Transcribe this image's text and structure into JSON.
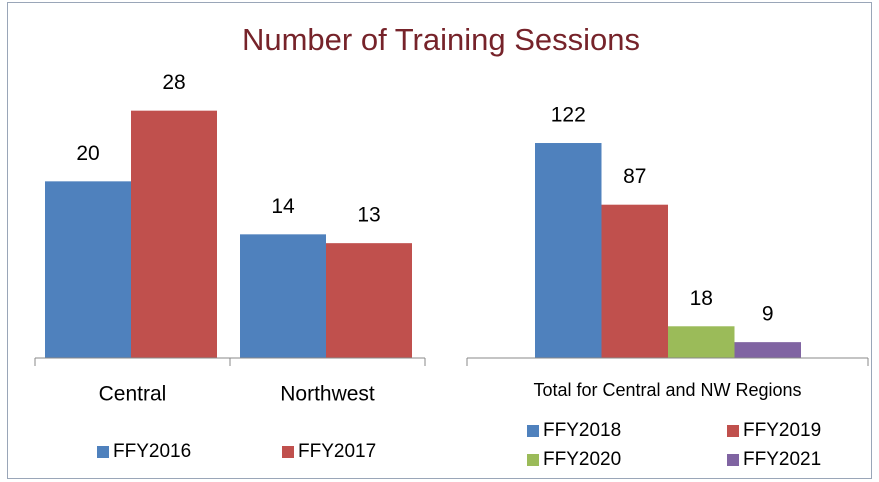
{
  "chart_data": [
    {
      "type": "bar",
      "title": "Number of Training Sessions",
      "categories": [
        "Central",
        "Northwest"
      ],
      "series": [
        {
          "name": "FFY2016",
          "color": "#4f81bd",
          "values": [
            20,
            14
          ]
        },
        {
          "name": "FFY2017",
          "color": "#c0504d",
          "values": [
            28,
            13
          ]
        }
      ],
      "ylim": [
        0,
        30
      ]
    },
    {
      "type": "bar",
      "categories": [
        "Total for Central and NW Regions"
      ],
      "series": [
        {
          "name": "FFY2018",
          "color": "#4f81bd",
          "values": [
            122
          ]
        },
        {
          "name": "FFY2019",
          "color": "#c0504d",
          "values": [
            87
          ]
        },
        {
          "name": "FFY2020",
          "color": "#9bbb59",
          "values": [
            18
          ]
        },
        {
          "name": "FFY2021",
          "color": "#8064a2",
          "values": [
            9
          ]
        }
      ],
      "ylim": [
        0,
        140
      ]
    }
  ]
}
